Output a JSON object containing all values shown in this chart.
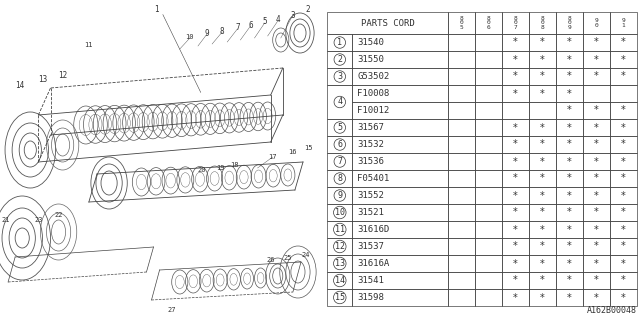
{
  "bg_color": "#ffffff",
  "line_color": "#444444",
  "footer": "A162B00048",
  "years": [
    "8\n0\n5",
    "8\n0\n6",
    "8\n0\n7",
    "8\n0\n8",
    "8\n0\n9",
    "9\n0",
    "9\n1"
  ],
  "rows": [
    {
      "num": "1",
      "code": "31540",
      "marks": [
        0,
        0,
        1,
        1,
        1,
        1,
        1
      ],
      "type": "single"
    },
    {
      "num": "2",
      "code": "31550",
      "marks": [
        0,
        0,
        1,
        1,
        1,
        1,
        1
      ],
      "type": "single"
    },
    {
      "num": "3",
      "code": "G53502",
      "marks": [
        0,
        0,
        1,
        1,
        1,
        1,
        1
      ],
      "type": "single"
    },
    {
      "num": "4",
      "code": "F10008",
      "marks": [
        0,
        0,
        1,
        1,
        1,
        0,
        0
      ],
      "type": "double_top"
    },
    {
      "num": "4",
      "code": "F10012",
      "marks": [
        0,
        0,
        0,
        0,
        1,
        1,
        1
      ],
      "type": "double_bot"
    },
    {
      "num": "5",
      "code": "31567",
      "marks": [
        0,
        0,
        1,
        1,
        1,
        1,
        1
      ],
      "type": "single"
    },
    {
      "num": "6",
      "code": "31532",
      "marks": [
        0,
        0,
        1,
        1,
        1,
        1,
        1
      ],
      "type": "single"
    },
    {
      "num": "7",
      "code": "31536",
      "marks": [
        0,
        0,
        1,
        1,
        1,
        1,
        1
      ],
      "type": "single"
    },
    {
      "num": "8",
      "code": "F05401",
      "marks": [
        0,
        0,
        1,
        1,
        1,
        1,
        1
      ],
      "type": "single"
    },
    {
      "num": "9",
      "code": "31552",
      "marks": [
        0,
        0,
        1,
        1,
        1,
        1,
        1
      ],
      "type": "single"
    },
    {
      "num": "10",
      "code": "31521",
      "marks": [
        0,
        0,
        1,
        1,
        1,
        1,
        1
      ],
      "type": "single"
    },
    {
      "num": "11",
      "code": "31616D",
      "marks": [
        0,
        0,
        1,
        1,
        1,
        1,
        1
      ],
      "type": "single"
    },
    {
      "num": "12",
      "code": "31537",
      "marks": [
        0,
        0,
        1,
        1,
        1,
        1,
        1
      ],
      "type": "single"
    },
    {
      "num": "13",
      "code": "31616A",
      "marks": [
        0,
        0,
        1,
        1,
        1,
        1,
        1
      ],
      "type": "single"
    },
    {
      "num": "14",
      "code": "31541",
      "marks": [
        0,
        0,
        1,
        1,
        1,
        1,
        1
      ],
      "type": "single"
    },
    {
      "num": "15",
      "code": "31598",
      "marks": [
        0,
        0,
        1,
        1,
        1,
        1,
        1
      ],
      "type": "single"
    }
  ]
}
